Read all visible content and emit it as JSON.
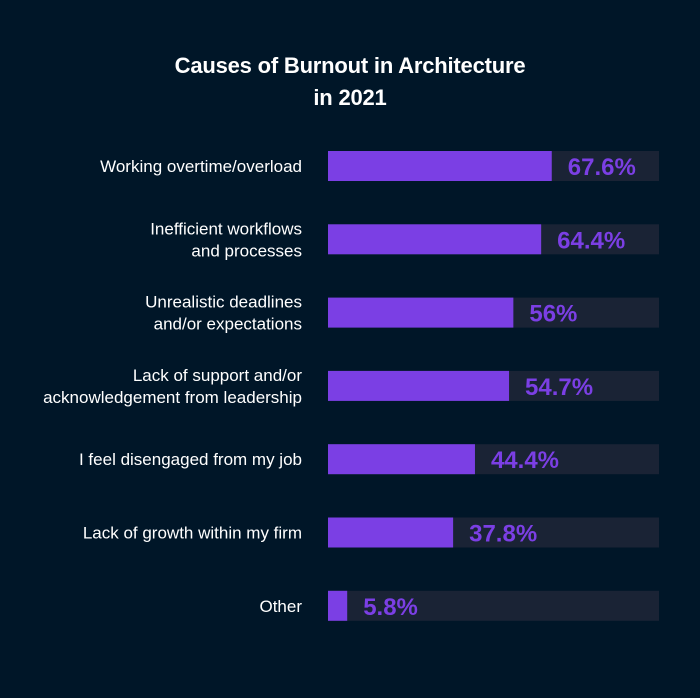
{
  "chart_data": {
    "type": "bar",
    "orientation": "horizontal",
    "title": [
      "Causes of Burnout in Architecture",
      "in 2021"
    ],
    "categories": [
      [
        "Working overtime/overload"
      ],
      [
        "Inefficient workflows",
        "and processes"
      ],
      [
        "Unrealistic deadlines",
        "and/or expectations"
      ],
      [
        "Lack of support and/or",
        "acknowledgement from leadership"
      ],
      [
        "I feel disengaged from my job"
      ],
      [
        "Lack of growth within my firm"
      ],
      [
        "Other"
      ]
    ],
    "values": [
      67.6,
      64.4,
      56,
      54.7,
      44.4,
      37.8,
      5.8
    ],
    "value_labels": [
      "67.6%",
      "64.4%",
      "56%",
      "54.7%",
      "44.4%",
      "37.8%",
      "5.8%"
    ],
    "xlim": [
      0,
      100
    ],
    "grid": false,
    "legend": "none",
    "colors": {
      "background": "#001628",
      "bar": "#7B3FE4",
      "track": "#1A2335",
      "value_text": "#7B3FE4",
      "label_text": "#FFFFFF"
    }
  }
}
